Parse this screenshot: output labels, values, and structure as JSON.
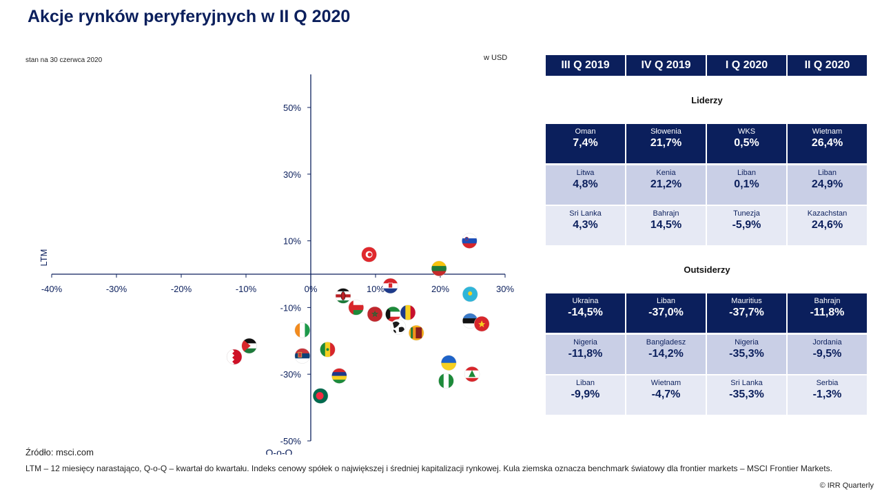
{
  "title": "Akcje rynków peryferyjnych w II Q 2020",
  "as_of": "stan na 30 czerwca 2020",
  "currency": "w USD",
  "source": "Źródło: msci.com",
  "footnote": "LTM – 12 miesięcy narastająco, Q-o-Q – kwartał do kwartału. Indeks cenowy spółek o największej i średniej kapitalizacji rynkowej. Kula ziemska oznacza benchmark światowy dla frontier markets – MSCI Frontier Markets.",
  "copyright": "© IRR Quarterly",
  "chart_data": {
    "type": "scatter",
    "xlabel": "Q-o-Q",
    "ylabel": "LTM",
    "xlim": [
      -40,
      30
    ],
    "ylim": [
      -50,
      60
    ],
    "x_ticks": [
      "-40%",
      "-30%",
      "-20%",
      "-10%",
      "0%",
      "10%",
      "20%",
      "30%"
    ],
    "x_tick_values": [
      -40,
      -30,
      -20,
      -10,
      0,
      10,
      20,
      30
    ],
    "y_ticks": [
      "50%",
      "30%",
      "10%",
      "-10%",
      "-30%",
      "-50%"
    ],
    "y_tick_values": [
      50,
      30,
      10,
      -10,
      -30,
      -50
    ],
    "points": [
      {
        "marker": "slovenia-flag",
        "x": 24.5,
        "y": 10.0
      },
      {
        "marker": "tunisia-flag",
        "x": 9.0,
        "y": 5.9
      },
      {
        "marker": "lithuania-flag",
        "x": 19.8,
        "y": 1.7
      },
      {
        "marker": "croatia-flag",
        "x": 12.3,
        "y": -3.5
      },
      {
        "marker": "kazakhstan-flag",
        "x": 24.6,
        "y": -6.0
      },
      {
        "marker": "kenya-flag",
        "x": 5.0,
        "y": -6.5
      },
      {
        "marker": "oman-flag",
        "x": 7.0,
        "y": -10.0
      },
      {
        "marker": "morocco-flag",
        "x": 9.9,
        "y": -12.0
      },
      {
        "marker": "kuwait-flag",
        "x": 12.7,
        "y": -12.0
      },
      {
        "marker": "romania-flag",
        "x": 15.0,
        "y": -11.5
      },
      {
        "marker": "estonia-flag",
        "x": 24.6,
        "y": -14.0
      },
      {
        "marker": "vietnam-flag",
        "x": 26.4,
        "y": -14.9
      },
      {
        "marker": "msci-frontier-globe",
        "x": 13.5,
        "y": -15.8
      },
      {
        "marker": "sri-lanka-flag",
        "x": 16.3,
        "y": -17.6
      },
      {
        "marker": "ivory-coast-flag",
        "x": -1.3,
        "y": -16.8
      },
      {
        "marker": "jordan-flag",
        "x": -9.5,
        "y": -21.5
      },
      {
        "marker": "bahrain-flag",
        "x": -11.8,
        "y": -24.8
      },
      {
        "marker": "serbia-flag",
        "x": -1.3,
        "y": -24.5
      },
      {
        "marker": "senegal-flag",
        "x": 2.6,
        "y": -22.6
      },
      {
        "marker": "ukraine-flag",
        "x": 21.3,
        "y": -26.6
      },
      {
        "marker": "lebanon-flag",
        "x": 24.9,
        "y": -30.0
      },
      {
        "marker": "mauritius-flag",
        "x": 4.4,
        "y": -30.5
      },
      {
        "marker": "nigeria-flag",
        "x": 20.9,
        "y": -32.0
      },
      {
        "marker": "bangladesh-flag",
        "x": 1.5,
        "y": -36.5
      }
    ]
  },
  "table": {
    "headers": [
      "III Q 2019",
      "IV Q 2019",
      "I Q 2020",
      "II Q 2020"
    ],
    "leaders_title": "Liderzy",
    "leaders": [
      [
        {
          "name": "Oman",
          "value": "7,4%"
        },
        {
          "name": "Słowenia",
          "value": "21,7%"
        },
        {
          "name": "WKS",
          "value": "0,5%"
        },
        {
          "name": "Wietnam",
          "value": "26,4%"
        }
      ],
      [
        {
          "name": "Litwa",
          "value": "4,8%"
        },
        {
          "name": "Kenia",
          "value": "21,2%"
        },
        {
          "name": "Liban",
          "value": "0,1%"
        },
        {
          "name": "Liban",
          "value": "24,9%"
        }
      ],
      [
        {
          "name": "Sri Lanka",
          "value": "4,3%"
        },
        {
          "name": "Bahrajn",
          "value": "14,5%"
        },
        {
          "name": "Tunezja",
          "value": "-5,9%"
        },
        {
          "name": "Kazachstan",
          "value": "24,6%"
        }
      ]
    ],
    "outsiders_title": "Outsiderzy",
    "outsiders": [
      [
        {
          "name": "Ukraina",
          "value": "-14,5%"
        },
        {
          "name": "Liban",
          "value": "-37,0%"
        },
        {
          "name": "Mauritius",
          "value": "-37,7%"
        },
        {
          "name": "Bahrajn",
          "value": "-11,8%"
        }
      ],
      [
        {
          "name": "Nigeria",
          "value": "-11,8%"
        },
        {
          "name": "Bangladesz",
          "value": "-14,2%"
        },
        {
          "name": "Nigeria",
          "value": "-35,3%"
        },
        {
          "name": "Jordania",
          "value": "-9,5%"
        }
      ],
      [
        {
          "name": "Liban",
          "value": "-9,9%"
        },
        {
          "name": "Wietnam",
          "value": "-4,7%"
        },
        {
          "name": "Sri Lanka",
          "value": "-35,3%"
        },
        {
          "name": "Serbia",
          "value": "-1,3%"
        }
      ]
    ]
  }
}
